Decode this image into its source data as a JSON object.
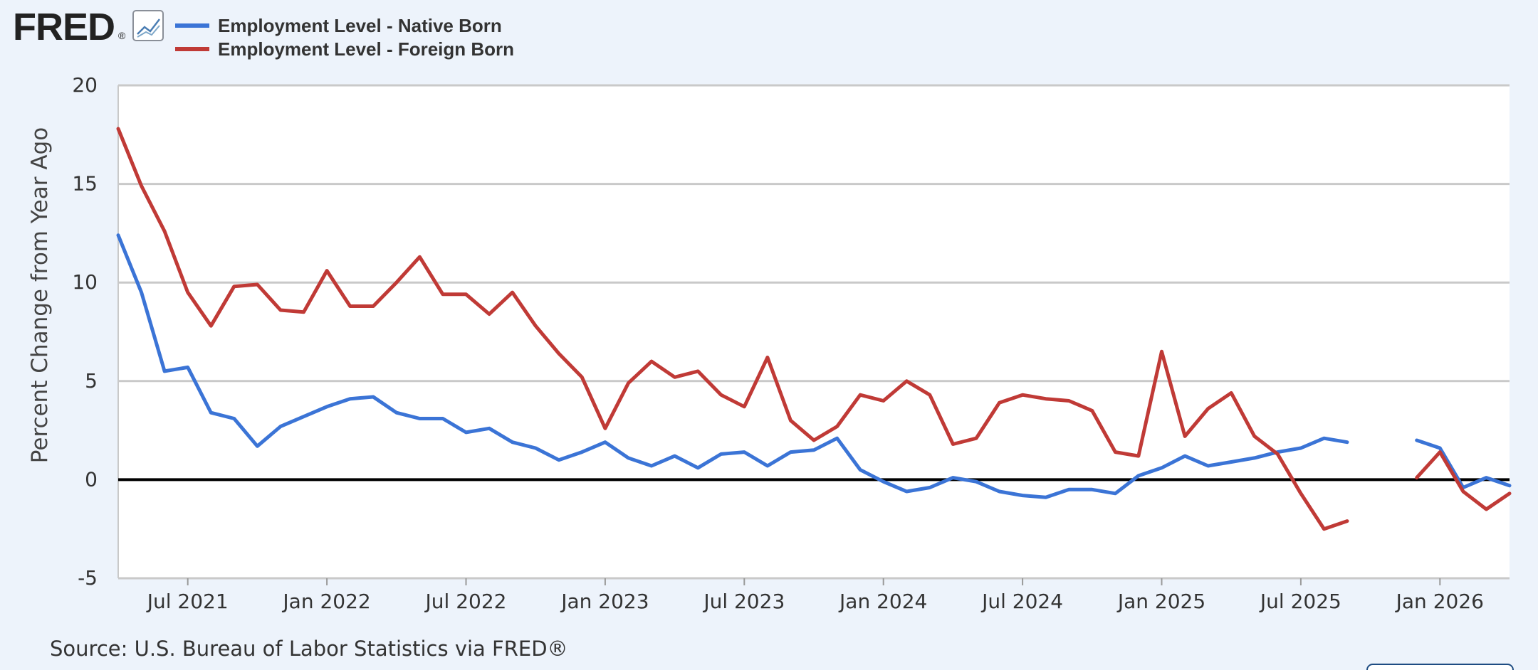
{
  "header": {
    "logo_text": "FRED",
    "registered_mark": "®",
    "chart_icon": "line-chart-icon"
  },
  "source": "Source: U.S. Bureau of Labor Statistics via FRED®",
  "colors": {
    "native_born": "#3b74d6",
    "foreign_born": "#c03a36",
    "zero_line": "#000000",
    "grid": "#c9c9c9",
    "background": "#edf3fb",
    "plot_background": "#ffffff"
  },
  "chart_data": {
    "type": "line",
    "title": "",
    "xlabel": "",
    "ylabel": "Percent Change from Year Ago",
    "ylim": [
      -5,
      20
    ],
    "yticks": [
      -5,
      0,
      5,
      10,
      15,
      20
    ],
    "ytick_labels": [
      "-5",
      "0",
      "5",
      "10",
      "15",
      "20"
    ],
    "x_start": "2021-04",
    "x_end": "2026-04",
    "xticks": [
      "2021-07",
      "2022-01",
      "2022-07",
      "2023-01",
      "2023-07",
      "2024-01",
      "2024-07",
      "2025-01",
      "2025-07",
      "2026-01"
    ],
    "xtick_labels": [
      "Jul 2021",
      "Jan 2022",
      "Jul 2022",
      "Jan 2023",
      "Jul 2023",
      "Jan 2024",
      "Jul 2024",
      "Jan 2025",
      "Jul 2025",
      "Jan 2026"
    ],
    "grid": true,
    "zero_line": true,
    "legend_position": "top-left",
    "x": [
      "2021-04",
      "2021-05",
      "2021-06",
      "2021-07",
      "2021-08",
      "2021-09",
      "2021-10",
      "2021-11",
      "2021-12",
      "2022-01",
      "2022-02",
      "2022-03",
      "2022-04",
      "2022-05",
      "2022-06",
      "2022-07",
      "2022-08",
      "2022-09",
      "2022-10",
      "2022-11",
      "2022-12",
      "2023-01",
      "2023-02",
      "2023-03",
      "2023-04",
      "2023-05",
      "2023-06",
      "2023-07",
      "2023-08",
      "2023-09",
      "2023-10",
      "2023-11",
      "2023-12",
      "2024-01",
      "2024-02",
      "2024-03",
      "2024-04",
      "2024-05",
      "2024-06",
      "2024-07",
      "2024-08",
      "2024-09",
      "2024-10",
      "2024-11",
      "2024-12",
      "2025-01",
      "2025-02",
      "2025-03",
      "2025-04",
      "2025-05",
      "2025-06",
      "2025-07",
      "2025-08",
      "2025-09",
      "2025-10",
      "2025-11",
      "2025-12",
      "2026-01",
      "2026-02",
      "2026-03",
      "2026-04"
    ],
    "series": [
      {
        "name": "Employment Level - Native Born",
        "color": "#3b74d6",
        "values": [
          12.4,
          9.5,
          5.5,
          5.7,
          3.4,
          3.1,
          1.7,
          2.7,
          3.2,
          3.7,
          4.1,
          4.2,
          3.4,
          3.1,
          3.1,
          2.4,
          2.6,
          1.9,
          1.6,
          1.0,
          1.4,
          1.9,
          1.1,
          0.7,
          1.2,
          0.6,
          1.3,
          1.4,
          0.7,
          1.4,
          1.5,
          2.1,
          0.5,
          -0.1,
          -0.6,
          -0.4,
          0.1,
          -0.1,
          -0.6,
          -0.8,
          -0.9,
          -0.5,
          -0.5,
          -0.7,
          0.2,
          0.6,
          1.2,
          0.7,
          0.9,
          1.1,
          1.4,
          1.6,
          2.1,
          1.9,
          null,
          null,
          2.0,
          1.6,
          -0.4,
          0.1,
          -0.3
        ]
      },
      {
        "name": "Employment Level - Foreign Born",
        "color": "#c03a36",
        "values": [
          17.8,
          14.9,
          12.6,
          9.5,
          7.8,
          9.8,
          9.9,
          8.6,
          8.5,
          10.6,
          8.8,
          8.8,
          10.0,
          11.3,
          9.4,
          9.4,
          8.4,
          9.5,
          7.8,
          6.4,
          5.2,
          2.6,
          4.9,
          6.0,
          5.2,
          5.5,
          4.3,
          3.7,
          6.2,
          3.0,
          2.0,
          2.7,
          4.3,
          4.0,
          5.0,
          4.3,
          1.8,
          2.1,
          3.9,
          4.3,
          4.1,
          4.0,
          3.5,
          1.4,
          1.2,
          6.5,
          2.2,
          3.6,
          4.4,
          2.2,
          1.3,
          -0.7,
          -2.5,
          -2.1,
          null,
          null,
          0.1,
          1.4,
          -0.6,
          -1.5,
          -0.7
        ]
      }
    ]
  }
}
